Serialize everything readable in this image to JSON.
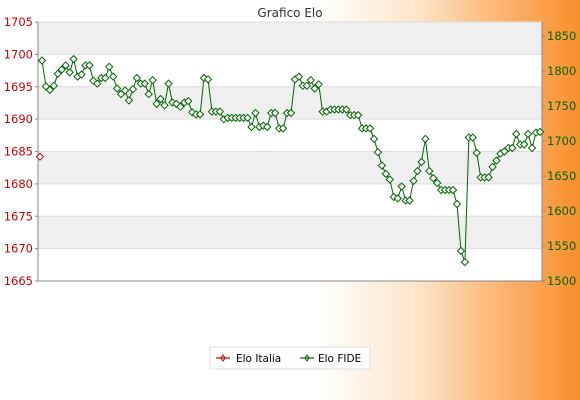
{
  "chart_data": {
    "type": "line",
    "title": "Grafico Elo",
    "xlabel": "",
    "ylabel": "",
    "grid": true,
    "legend_position": "bottom-center",
    "y_left": {
      "ticks": [
        1665,
        1670,
        1675,
        1680,
        1685,
        1690,
        1695,
        1700,
        1705
      ],
      "min": 1665,
      "max": 1705,
      "color": "#cc0000"
    },
    "y_right": {
      "ticks": [
        1500,
        1550,
        1600,
        1650,
        1700,
        1750,
        1800,
        1850
      ],
      "min": 1500,
      "max": 1870,
      "color": "#006600"
    },
    "series": [
      {
        "name": "Elo Italia",
        "axis": "left",
        "color": "#cc0000",
        "values": [
          1684.2
        ]
      },
      {
        "name": "Elo FIDE",
        "axis": "right",
        "color": "#006600",
        "values": [
          1815,
          1778,
          1773,
          1779,
          1796,
          1802,
          1808,
          1798,
          1817,
          1792,
          1795,
          1808,
          1808,
          1786,
          1782,
          1790,
          1790,
          1806,
          1792,
          1775,
          1767,
          1772,
          1758,
          1774,
          1790,
          1782,
          1782,
          1767,
          1787,
          1753,
          1760,
          1751,
          1782,
          1755,
          1753,
          1749,
          1755,
          1757,
          1741,
          1738,
          1738,
          1790,
          1788,
          1742,
          1742,
          1742,
          1731,
          1733,
          1733,
          1733,
          1733,
          1733,
          1733,
          1720,
          1740,
          1720,
          1722,
          1720,
          1740,
          1740,
          1718,
          1718,
          1740,
          1740,
          1788,
          1792,
          1779,
          1779,
          1787,
          1775,
          1781,
          1742,
          1742,
          1745,
          1745,
          1745,
          1745,
          1745,
          1737,
          1737,
          1737,
          1718,
          1718,
          1718,
          1703,
          1684,
          1665,
          1653,
          1645,
          1620,
          1618,
          1635,
          1615,
          1615,
          1643,
          1657,
          1670,
          1703,
          1657,
          1647,
          1640,
          1630,
          1630,
          1630,
          1630,
          1610,
          1543,
          1527,
          1705,
          1705,
          1683,
          1648,
          1648,
          1648,
          1663,
          1672,
          1682,
          1685,
          1690,
          1690,
          1710,
          1695,
          1695,
          1710,
          1690,
          1712,
          1713
        ]
      }
    ],
    "x_tick_labels_note": ""
  }
}
